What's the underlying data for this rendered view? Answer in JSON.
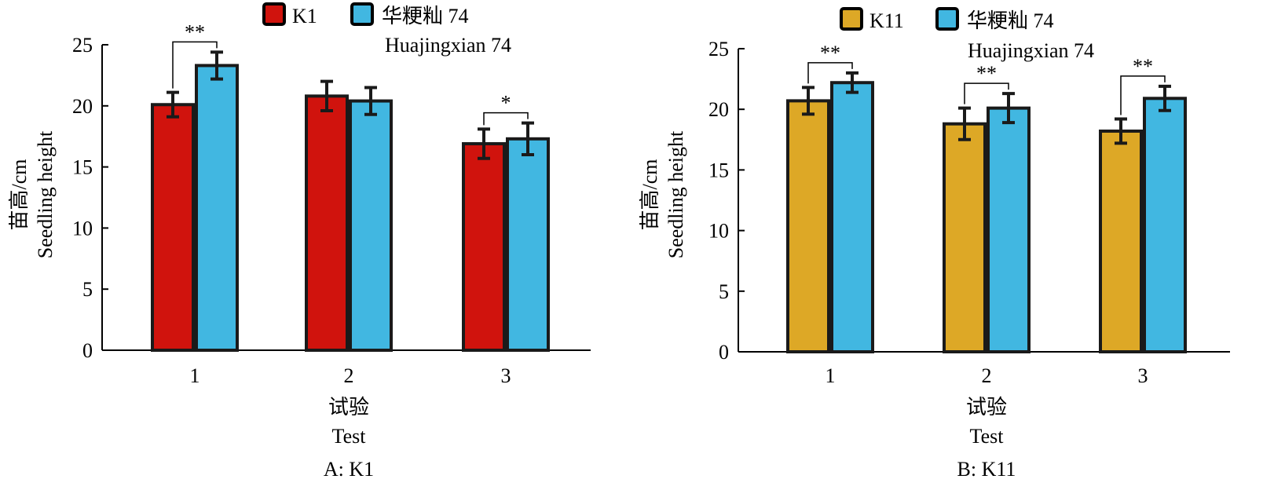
{
  "chart_data": [
    {
      "type": "bar",
      "caption": "A: K1",
      "xlabel_cn": "试验",
      "xlabel_en": "Test",
      "ylabel_cn": "苗高/cm",
      "ylabel_en": "Seedling height",
      "categories": [
        "1",
        "2",
        "3"
      ],
      "ylim": [
        0,
        25
      ],
      "yticks": [
        0,
        5,
        10,
        15,
        20,
        25
      ],
      "legend_position": "top",
      "series": [
        {
          "name": "K1",
          "color": "#d0130d",
          "values": [
            20.1,
            20.8,
            16.9
          ],
          "errors": [
            1.0,
            1.2,
            1.2
          ]
        },
        {
          "name": "华粳籼 74",
          "name_en": "Huajingxian 74",
          "color": "#41b7e1",
          "values": [
            23.3,
            20.4,
            17.3
          ],
          "errors": [
            1.1,
            1.1,
            1.3
          ]
        }
      ],
      "significance": [
        {
          "category": "1",
          "label": "**"
        },
        {
          "category": "3",
          "label": "*"
        }
      ]
    },
    {
      "type": "bar",
      "caption": "B: K11",
      "xlabel_cn": "试验",
      "xlabel_en": "Test",
      "ylabel_cn": "苗高/cm",
      "ylabel_en": "Seedling height",
      "categories": [
        "1",
        "2",
        "3"
      ],
      "ylim": [
        0,
        25
      ],
      "yticks": [
        0,
        5,
        10,
        15,
        20,
        25
      ],
      "legend_position": "top",
      "series": [
        {
          "name": "K11",
          "color": "#dda826",
          "values": [
            20.7,
            18.8,
            18.2
          ],
          "errors": [
            1.1,
            1.3,
            1.0
          ]
        },
        {
          "name": "华粳籼 74",
          "name_en": "Huajingxian 74",
          "color": "#41b7e1",
          "values": [
            22.2,
            20.1,
            20.9
          ],
          "errors": [
            0.8,
            1.2,
            1.0
          ]
        }
      ],
      "significance": [
        {
          "category": "1",
          "label": "**"
        },
        {
          "category": "2",
          "label": "**"
        },
        {
          "category": "3",
          "label": "**"
        }
      ]
    }
  ]
}
